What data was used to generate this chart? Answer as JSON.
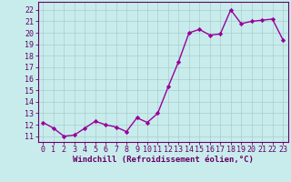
{
  "x": [
    0,
    1,
    2,
    3,
    4,
    5,
    6,
    7,
    8,
    9,
    10,
    11,
    12,
    13,
    14,
    15,
    16,
    17,
    18,
    19,
    20,
    21,
    22,
    23
  ],
  "y": [
    12.2,
    11.7,
    11.0,
    11.1,
    11.7,
    12.3,
    12.0,
    11.8,
    11.4,
    12.6,
    12.2,
    13.0,
    15.3,
    17.5,
    20.0,
    20.3,
    19.8,
    19.9,
    22.0,
    20.8,
    21.0,
    21.1,
    21.2,
    19.4
  ],
  "line_color": "#990099",
  "marker": "D",
  "marker_size": 2.2,
  "bg_color": "#c8ecec",
  "grid_color": "#aacccc",
  "ylabel_ticks": [
    11,
    12,
    13,
    14,
    15,
    16,
    17,
    18,
    19,
    20,
    21,
    22
  ],
  "ylim": [
    10.5,
    22.7
  ],
  "xlim": [
    -0.5,
    23.5
  ],
  "xlabel": "Windchill (Refroidissement éolien,°C)",
  "xticks": [
    0,
    1,
    2,
    3,
    4,
    5,
    6,
    7,
    8,
    9,
    10,
    11,
    12,
    13,
    14,
    15,
    16,
    17,
    18,
    19,
    20,
    21,
    22,
    23
  ],
  "axis_color": "#660066",
  "tick_label_color": "#660066",
  "xlabel_color": "#660066",
  "line_width": 1.0,
  "xlabel_fontsize": 6.5,
  "tick_fontsize": 6.0
}
